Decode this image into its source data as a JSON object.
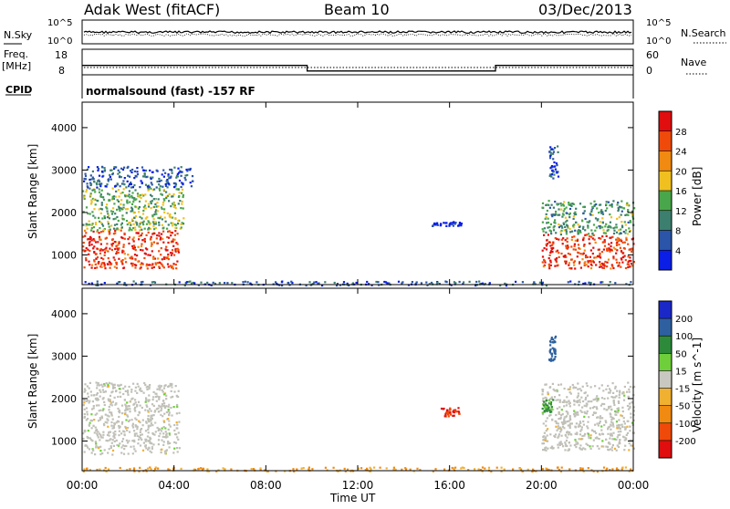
{
  "header": {
    "station_title": "Adak West (fitACF)",
    "beam_label": "Beam 10",
    "date_label": "03/Dec/2013"
  },
  "noise_panel": {
    "left_label": "N.Sky",
    "left_tick_top": "10^5",
    "left_tick_bottom": "10^0",
    "right_tick_top": "10^5",
    "right_tick_bottom": "10^0",
    "right_label": "N.Search"
  },
  "freq_panel": {
    "left_label_top": "Freq.",
    "left_label_unit": "[MHz]",
    "left_tick_top": "18",
    "left_tick_bottom": "8",
    "right_tick_top": "60",
    "right_tick_bottom": "0",
    "right_label": "Nave"
  },
  "cpid_panel": {
    "label": "CPID",
    "program": "normalsound (fast) -157 RF"
  },
  "colors": {
    "power_scale": [
      "#0a1ee6",
      "#2a55a8",
      "#3c7f6e",
      "#4aa64a",
      "#f0c020",
      "#f08a10",
      "#f04a0a",
      "#e00e0e"
    ],
    "velocity_scale": [
      "#1a28c8",
      "#2e60a0",
      "#2d8a3a",
      "#6ecf3a",
      "#c8c8c0",
      "#f0b030",
      "#f08a10",
      "#f04a0a",
      "#e00e0e"
    ],
    "ground_scatter": "#c0c0b8"
  },
  "chart_data": [
    {
      "type": "heatmap",
      "panel": "power",
      "ylabel": "Slant Range [km]",
      "y_ticks": [
        "1000",
        "2000",
        "3000",
        "4000"
      ],
      "ylim": [
        300,
        4600
      ],
      "xlim_hours": [
        0,
        24
      ],
      "colorbar_label": "Power [dB]",
      "colorbar_ticks": [
        "4",
        "8",
        "12",
        "16",
        "20",
        "24",
        "28"
      ],
      "colorbar_range": [
        0,
        32
      ],
      "regions": [
        {
          "t0": 0.0,
          "t1": 4.2,
          "r0": 700,
          "r1": 1600,
          "level": 28
        },
        {
          "t0": 0.0,
          "t1": 4.4,
          "r0": 1600,
          "r1": 2600,
          "level": 14
        },
        {
          "t0": 0.0,
          "t1": 4.8,
          "r0": 2600,
          "r1": 3100,
          "level": 6
        },
        {
          "t0": 15.2,
          "t1": 16.5,
          "r0": 1700,
          "r1": 1800,
          "level": 2
        },
        {
          "t0": 20.0,
          "t1": 24.0,
          "r0": 700,
          "r1": 1500,
          "level": 28
        },
        {
          "t0": 20.0,
          "t1": 24.0,
          "r0": 1500,
          "r1": 2300,
          "level": 12
        },
        {
          "t0": 20.3,
          "t1": 20.7,
          "r0": 2800,
          "r1": 3600,
          "level": 6
        },
        {
          "t0": 0.0,
          "t1": 24.0,
          "r0": 200,
          "r1": 400,
          "level": 6
        }
      ]
    },
    {
      "type": "heatmap",
      "panel": "velocity",
      "ylabel": "Slant Range [km]",
      "y_ticks": [
        "1000",
        "2000",
        "3000",
        "4000"
      ],
      "ylim": [
        300,
        4600
      ],
      "xlim_hours": [
        0,
        24
      ],
      "colorbar_label": "Velocity [m s^-1]",
      "colorbar_ticks": [
        "200",
        "100",
        "50",
        "15",
        "-15",
        "-50",
        "-100",
        "-200"
      ],
      "colorbar_range": [
        -250,
        250
      ],
      "regions": [
        {
          "t0": 0.0,
          "t1": 4.2,
          "r0": 700,
          "r1": 2400,
          "velocity": 0
        },
        {
          "t0": 15.6,
          "t1": 16.4,
          "r0": 1600,
          "r1": 1800,
          "velocity": -200
        },
        {
          "t0": 20.0,
          "t1": 24.0,
          "r0": 800,
          "r1": 2400,
          "velocity": 0
        },
        {
          "t0": 20.0,
          "t1": 20.5,
          "r0": 1700,
          "r1": 2000,
          "velocity": 60
        },
        {
          "t0": 20.3,
          "t1": 20.6,
          "r0": 2900,
          "r1": 3500,
          "velocity": 150
        },
        {
          "t0": 0.0,
          "t1": 24.0,
          "r0": 200,
          "r1": 400,
          "velocity": -60
        }
      ]
    }
  ],
  "x_axis": {
    "ticks": [
      "00:00",
      "04:00",
      "08:00",
      "12:00",
      "16:00",
      "20:00",
      "00:00"
    ],
    "label": "Time UT"
  },
  "freq_series": {
    "hours": [
      0,
      9.8,
      9.8,
      18.0,
      18.0,
      24
    ],
    "mhz": [
      12.4,
      12.4,
      10.2,
      10.2,
      12.4,
      12.4
    ]
  }
}
